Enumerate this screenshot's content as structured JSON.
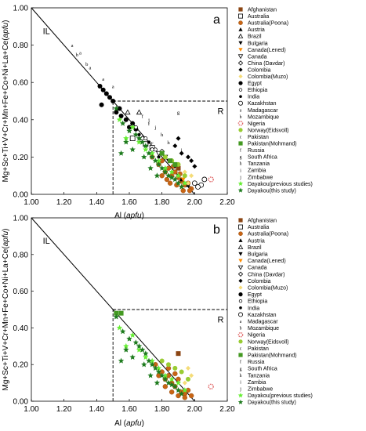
{
  "chart_data": [
    {
      "type": "scatter",
      "panel_label": "a",
      "xlabel": "Al (apfu)",
      "ylabel": "Mg+Sc+Ti+V+Cr+Mn+Fe+Co+Ni+La+Ce(apfu)",
      "xlim": [
        1.0,
        2.2
      ],
      "ylim": [
        0.0,
        1.0
      ],
      "xticks": [
        "1.00",
        "1.20",
        "1.40",
        "1.60",
        "1.80",
        "2.00",
        "2.20"
      ],
      "yticks": [
        "0.00",
        "0.20",
        "0.40",
        "0.60",
        "0.80",
        "1.00"
      ],
      "grid": false,
      "annotations": {
        "il": "IL",
        "r": "R"
      },
      "reference_lines": {
        "il_line": [
          [
            1.0,
            1.0
          ],
          [
            2.0,
            0.0
          ]
        ],
        "r_box": {
          "x": 1.5,
          "y": 0.5
        }
      },
      "legend_position": "right",
      "series": [
        {
          "name": "Afghanistan",
          "marker": "square",
          "color": "#8B4513",
          "x": [
            1.9
          ],
          "y": [
            0.14
          ]
        },
        {
          "name": "Australia",
          "marker": "square-open",
          "color": "#000000",
          "x": [
            1.62,
            1.7,
            1.74
          ],
          "y": [
            0.3,
            0.27,
            0.25
          ]
        },
        {
          "name": "Australia(Poona)",
          "marker": "circle",
          "color": "#C86414",
          "x": [
            1.74,
            1.78,
            1.8,
            1.82,
            1.84,
            1.86,
            1.88,
            1.9,
            1.92,
            1.94,
            1.96,
            1.98,
            1.8,
            1.85,
            1.89,
            1.93,
            1.97,
            1.87,
            1.91,
            1.83
          ],
          "y": [
            0.2,
            0.16,
            0.18,
            0.12,
            0.14,
            0.1,
            0.12,
            0.09,
            0.07,
            0.05,
            0.06,
            0.03,
            0.1,
            0.06,
            0.05,
            0.02,
            0.02,
            0.15,
            0.11,
            0.08
          ]
        },
        {
          "name": "Austria",
          "marker": "triangle-up",
          "color": "#000000",
          "x": [
            1.92,
            1.96
          ],
          "y": [
            0.08,
            0.05
          ]
        },
        {
          "name": "Brazil",
          "marker": "triangle-open",
          "color": "#000000",
          "x": [
            1.59,
            1.66
          ],
          "y": [
            0.44,
            0.44
          ]
        },
        {
          "name": "Bulgaria",
          "marker": "triangle-down",
          "color": "#000000",
          "x": [
            1.84,
            1.88
          ],
          "y": [
            0.18,
            0.15
          ]
        },
        {
          "name": "Canada(Lened)",
          "marker": "triangle-down",
          "color": "#FF8C00",
          "x": [
            1.93
          ],
          "y": [
            0.08
          ]
        },
        {
          "name": "Canada",
          "marker": "triangle-down-open",
          "color": "#000000",
          "x": [
            1.78,
            1.82
          ],
          "y": [
            0.22,
            0.2
          ]
        },
        {
          "name": "China (Davdar)",
          "marker": "diamond-open",
          "color": "#000000",
          "x": [
            1.68,
            1.74,
            1.8
          ],
          "y": [
            0.3,
            0.24,
            0.23
          ]
        },
        {
          "name": "Colombia",
          "marker": "diamond",
          "color": "#000000",
          "x": [
            1.88,
            1.9,
            1.92,
            1.96,
            1.98,
            2.0
          ],
          "y": [
            0.26,
            0.3,
            0.22,
            0.2,
            0.18,
            0.15
          ]
        },
        {
          "name": "Colombia(Muzo)",
          "marker": "diamond",
          "color": "#F5DC78",
          "x": [
            1.94,
            1.98,
            1.96
          ],
          "y": [
            0.12,
            0.1,
            0.06
          ]
        },
        {
          "name": "Egypt",
          "marker": "circle",
          "color": "#000000",
          "x": [
            1.42,
            1.44,
            1.46,
            1.48,
            1.5,
            1.54,
            1.58,
            1.62,
            1.64,
            1.55,
            1.52,
            1.43,
            1.6
          ],
          "y": [
            0.58,
            0.56,
            0.54,
            0.52,
            0.5,
            0.46,
            0.4,
            0.38,
            0.35,
            0.42,
            0.44,
            0.48,
            0.36
          ]
        },
        {
          "name": "Ethiopia",
          "marker": "circle-open-small",
          "color": "#000000",
          "x": [
            1.64,
            1.7,
            1.76
          ],
          "y": [
            0.36,
            0.3,
            0.24
          ]
        },
        {
          "name": "India",
          "marker": "circle-small",
          "color": "#000000",
          "x": [
            1.66,
            1.72,
            1.78
          ],
          "y": [
            0.32,
            0.28,
            0.2
          ]
        },
        {
          "name": "Kazakhstan",
          "marker": "circle-open",
          "color": "#000000",
          "x": [
            2.0,
            2.04,
            2.06,
            2.02
          ],
          "y": [
            0.06,
            0.05,
            0.08,
            0.04
          ]
        },
        {
          "name": "Madagascar",
          "marker": "letter-a",
          "color": "#000000",
          "x": [
            1.25,
            1.3,
            1.36,
            1.44,
            1.5
          ],
          "y": [
            0.8,
            0.76,
            0.68,
            0.62,
            0.58
          ]
        },
        {
          "name": "Mozambique",
          "marker": "letter-b",
          "color": "#000000",
          "x": [
            1.28,
            1.34
          ],
          "y": [
            0.75,
            0.7
          ]
        },
        {
          "name": "Nigeria",
          "marker": "circle-striped",
          "color": "#E06666",
          "x": [
            2.1
          ],
          "y": [
            0.08
          ]
        },
        {
          "name": "Norway(Eidsvoll)",
          "marker": "circle",
          "color": "#99CC33",
          "x": [
            1.82,
            1.86,
            1.9,
            1.94
          ],
          "y": [
            0.2,
            0.18,
            0.16,
            0.1
          ]
        },
        {
          "name": "Pakistan",
          "marker": "letter-c",
          "color": "#000000",
          "x": [
            1.74,
            1.8
          ],
          "y": [
            0.28,
            0.22
          ]
        },
        {
          "name": "Pakistan(Mohmand)",
          "marker": "square",
          "color": "#449922",
          "x": [
            1.85,
            1.88,
            1.8
          ],
          "y": [
            0.18,
            0.16,
            0.22
          ]
        },
        {
          "name": "Russia",
          "marker": "letter-f",
          "color": "#000000",
          "x": [
            1.68,
            1.72
          ],
          "y": [
            0.42,
            0.38
          ]
        },
        {
          "name": "South Africa",
          "marker": "letter-g",
          "color": "#000000",
          "x": [
            1.9
          ],
          "y": [
            0.44
          ]
        },
        {
          "name": "Tanzania",
          "marker": "letter-h",
          "color": "#000000",
          "x": [
            1.8,
            1.84
          ],
          "y": [
            0.32,
            0.28
          ]
        },
        {
          "name": "Zambia",
          "marker": "letter-i",
          "color": "#000000",
          "x": [
            1.92
          ],
          "y": [
            0.24
          ]
        },
        {
          "name": "Zimbabwe",
          "marker": "letter-j",
          "color": "#000000",
          "x": [
            1.72,
            1.76
          ],
          "y": [
            0.4,
            0.36
          ]
        },
        {
          "name": "Dayakou(previous studies)",
          "marker": "star",
          "color": "#66EE33",
          "x": [
            1.54,
            1.58,
            1.62,
            1.66,
            1.7,
            1.74,
            1.78,
            1.82,
            1.86,
            1.9,
            1.94
          ],
          "y": [
            0.4,
            0.3,
            0.36,
            0.28,
            0.24,
            0.22,
            0.18,
            0.14,
            0.12,
            0.1,
            0.06
          ]
        },
        {
          "name": "Dayakou(this study)",
          "marker": "star",
          "color": "#1E7B1E",
          "x": [
            1.52,
            1.56,
            1.6,
            1.64,
            1.66,
            1.68,
            1.7,
            1.72,
            1.74,
            1.76,
            1.78,
            1.8,
            1.82,
            1.84,
            1.86,
            1.88,
            1.9,
            1.92,
            1.62,
            1.58,
            1.55,
            1.69,
            1.73,
            1.77
          ],
          "y": [
            0.46,
            0.38,
            0.34,
            0.32,
            0.3,
            0.28,
            0.26,
            0.22,
            0.2,
            0.18,
            0.16,
            0.14,
            0.12,
            0.1,
            0.09,
            0.08,
            0.06,
            0.04,
            0.24,
            0.28,
            0.22,
            0.2,
            0.14,
            0.1
          ]
        }
      ]
    },
    {
      "type": "scatter",
      "panel_label": "b",
      "xlabel": "Al (apfu)",
      "ylabel": "Mg+Sc+Ti+V+Cr+Mn+Fe+Co+Ni+La+Ce(apfu)",
      "xlim": [
        1.0,
        2.2
      ],
      "ylim": [
        0.0,
        1.0
      ],
      "xticks": [
        "1.00",
        "1.20",
        "1.40",
        "1.60",
        "1.80",
        "2.00",
        "2.20"
      ],
      "yticks": [
        "0.00",
        "0.20",
        "0.40",
        "0.60",
        "0.80",
        "1.00"
      ],
      "grid": false,
      "annotations": {
        "il": "IL",
        "r": "R"
      },
      "reference_lines": {
        "il_line": [
          [
            1.0,
            1.0
          ],
          [
            2.0,
            0.0
          ]
        ],
        "r_box": {
          "x": 1.5,
          "y": 0.5
        }
      },
      "legend_position": "right",
      "series": [
        {
          "name": "Afghanistan",
          "marker": "square",
          "color": "#8B4513",
          "x": [
            1.9
          ],
          "y": [
            0.26
          ]
        },
        {
          "name": "Australia",
          "marker": "square-open",
          "color": "#000000",
          "x": [],
          "y": []
        },
        {
          "name": "Australia(Poona)",
          "marker": "circle",
          "color": "#C86414",
          "x": [
            1.76,
            1.8,
            1.82,
            1.84,
            1.86,
            1.88,
            1.9,
            1.92,
            1.94,
            1.96,
            1.82,
            1.86,
            1.9,
            1.94,
            1.98,
            1.78,
            1.84,
            1.88
          ],
          "y": [
            0.2,
            0.16,
            0.12,
            0.14,
            0.1,
            0.08,
            0.12,
            0.05,
            0.04,
            0.06,
            0.08,
            0.05,
            0.03,
            0.02,
            0.03,
            0.14,
            0.18,
            0.15
          ]
        },
        {
          "name": "Austria",
          "marker": "triangle-up",
          "color": "#000000",
          "x": [],
          "y": []
        },
        {
          "name": "Brazil",
          "marker": "triangle-open",
          "color": "#000000",
          "x": [],
          "y": []
        },
        {
          "name": "Bulgaria",
          "marker": "triangle-down",
          "color": "#000000",
          "x": [],
          "y": []
        },
        {
          "name": "Canada(Lened)",
          "marker": "triangle-down",
          "color": "#FF8C00",
          "x": [],
          "y": []
        },
        {
          "name": "Canada",
          "marker": "triangle-down-open",
          "color": "#000000",
          "x": [],
          "y": []
        },
        {
          "name": "China (Davdar)",
          "marker": "diamond-open",
          "color": "#000000",
          "x": [],
          "y": []
        },
        {
          "name": "Colombia",
          "marker": "diamond",
          "color": "#000000",
          "x": [],
          "y": []
        },
        {
          "name": "Colombia(Muzo)",
          "marker": "diamond",
          "color": "#F5DC78",
          "x": [
            1.96,
            1.98,
            1.94
          ],
          "y": [
            0.18,
            0.14,
            0.1
          ]
        },
        {
          "name": "Egypt",
          "marker": "circle",
          "color": "#000000",
          "x": [],
          "y": []
        },
        {
          "name": "Ethiopia",
          "marker": "circle-open-small",
          "color": "#000000",
          "x": [],
          "y": []
        },
        {
          "name": "India",
          "marker": "circle-small",
          "color": "#000000",
          "x": [],
          "y": []
        },
        {
          "name": "Kazakhstan",
          "marker": "circle-open",
          "color": "#000000",
          "x": [],
          "y": []
        },
        {
          "name": "Madagascar",
          "marker": "letter-a",
          "color": "#000000",
          "x": [],
          "y": []
        },
        {
          "name": "Mozambique",
          "marker": "letter-b",
          "color": "#000000",
          "x": [],
          "y": []
        },
        {
          "name": "Nigeria",
          "marker": "circle-striped",
          "color": "#E06666",
          "x": [
            2.1
          ],
          "y": [
            0.08
          ]
        },
        {
          "name": "Norway(Eidsvoll)",
          "marker": "circle",
          "color": "#99CC33",
          "x": [
            1.84,
            1.88,
            1.92,
            1.96,
            1.8
          ],
          "y": [
            0.2,
            0.18,
            0.16,
            0.12,
            0.22
          ]
        },
        {
          "name": "Pakistan",
          "marker": "letter-c",
          "color": "#000000",
          "x": [],
          "y": []
        },
        {
          "name": "Pakistan(Mohmand)",
          "marker": "square",
          "color": "#449922",
          "x": [
            1.52,
            1.55
          ],
          "y": [
            0.48,
            0.48
          ]
        },
        {
          "name": "Russia",
          "marker": "letter-f",
          "color": "#000000",
          "x": [],
          "y": []
        },
        {
          "name": "South Africa",
          "marker": "letter-g",
          "color": "#000000",
          "x": [],
          "y": []
        },
        {
          "name": "Tanzania",
          "marker": "letter-h",
          "color": "#000000",
          "x": [],
          "y": []
        },
        {
          "name": "Zambia",
          "marker": "letter-i",
          "color": "#000000",
          "x": [],
          "y": []
        },
        {
          "name": "Zimbabwe",
          "marker": "letter-j",
          "color": "#000000",
          "x": [],
          "y": []
        },
        {
          "name": "Dayakou(previous studies)",
          "marker": "star",
          "color": "#66EE33",
          "x": [
            1.54,
            1.58,
            1.62,
            1.66,
            1.7,
            1.74,
            1.78,
            1.82,
            1.86,
            1.9,
            1.94
          ],
          "y": [
            0.4,
            0.3,
            0.36,
            0.28,
            0.24,
            0.22,
            0.18,
            0.14,
            0.12,
            0.1,
            0.06
          ]
        },
        {
          "name": "Dayakou(this study)",
          "marker": "star",
          "color": "#1E7B1E",
          "x": [
            1.52,
            1.56,
            1.6,
            1.64,
            1.66,
            1.68,
            1.7,
            1.72,
            1.74,
            1.76,
            1.78,
            1.8,
            1.82,
            1.84,
            1.86,
            1.88,
            1.9,
            1.92,
            1.62,
            1.58,
            1.55,
            1.69,
            1.73,
            1.77
          ],
          "y": [
            0.46,
            0.38,
            0.34,
            0.32,
            0.3,
            0.28,
            0.26,
            0.22,
            0.2,
            0.18,
            0.16,
            0.14,
            0.12,
            0.1,
            0.09,
            0.08,
            0.06,
            0.04,
            0.24,
            0.28,
            0.22,
            0.2,
            0.14,
            0.1
          ]
        }
      ]
    }
  ]
}
